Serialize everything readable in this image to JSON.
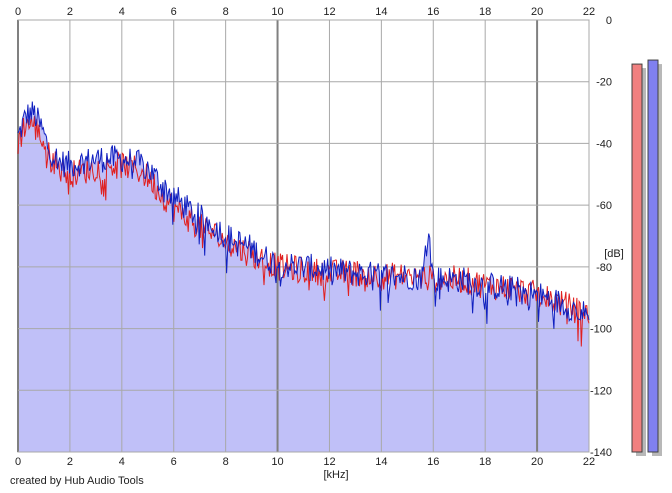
{
  "chart_data": {
    "type": "area",
    "xlabel": "[kHz]",
    "ylabel": "[dB]",
    "xlim": [
      0,
      22
    ],
    "ylim": [
      -140,
      0
    ],
    "x_ticks": [
      "0",
      "2",
      "4",
      "6",
      "8",
      "10",
      "12",
      "14",
      "16",
      "18",
      "20",
      "22"
    ],
    "y_ticks": [
      "0",
      "-20",
      "-40",
      "-60",
      "-80",
      "-100",
      "-120",
      "-140"
    ],
    "grid": true,
    "fill_color": "#c0c0f8",
    "series": [
      {
        "color": "#e02020",
        "x": [
          0,
          0.3,
          0.6,
          0.9,
          1.2,
          1.6,
          2,
          2.5,
          3,
          3.5,
          4,
          4.5,
          5,
          5.5,
          6,
          6.5,
          7,
          7.5,
          8,
          8.5,
          9,
          9.5,
          10,
          11,
          12,
          13,
          14,
          15,
          16,
          17,
          18,
          19,
          20,
          21,
          22
        ],
        "y": [
          -40,
          -33,
          -34,
          -38,
          -44,
          -48,
          -50,
          -49,
          -48,
          -47,
          -47,
          -48,
          -51,
          -56,
          -61,
          -64,
          -67,
          -69,
          -72,
          -74,
          -76,
          -78,
          -80,
          -81,
          -82,
          -82,
          -83,
          -83,
          -84,
          -84,
          -86,
          -87,
          -89,
          -92,
          -96
        ]
      },
      {
        "color": "#1020c0",
        "x": [
          0,
          0.3,
          0.6,
          0.9,
          1.2,
          1.6,
          2,
          2.5,
          3,
          3.5,
          4,
          4.5,
          5,
          5.5,
          6,
          6.5,
          7,
          7.5,
          8,
          8.5,
          9,
          9.5,
          10,
          11,
          12,
          13,
          14,
          15,
          15.6,
          15.8,
          16,
          17,
          18,
          19,
          20,
          21,
          22
        ],
        "y": [
          -38,
          -31,
          -30,
          -35,
          -42,
          -46,
          -47,
          -46,
          -45,
          -45,
          -45,
          -46,
          -48,
          -53,
          -57,
          -61,
          -64,
          -66,
          -70,
          -72,
          -74,
          -77,
          -79,
          -80,
          -81,
          -82,
          -83,
          -83,
          -83,
          -67,
          -84,
          -84,
          -86,
          -87,
          -89,
          -92,
          -96
        ]
      }
    ]
  },
  "level_meters": [
    {
      "color": "#f08080",
      "level": 0.965
    },
    {
      "color": "#8080f0",
      "level": 0.975
    }
  ],
  "footer": {
    "credit": "created by Hub Audio Tools"
  }
}
